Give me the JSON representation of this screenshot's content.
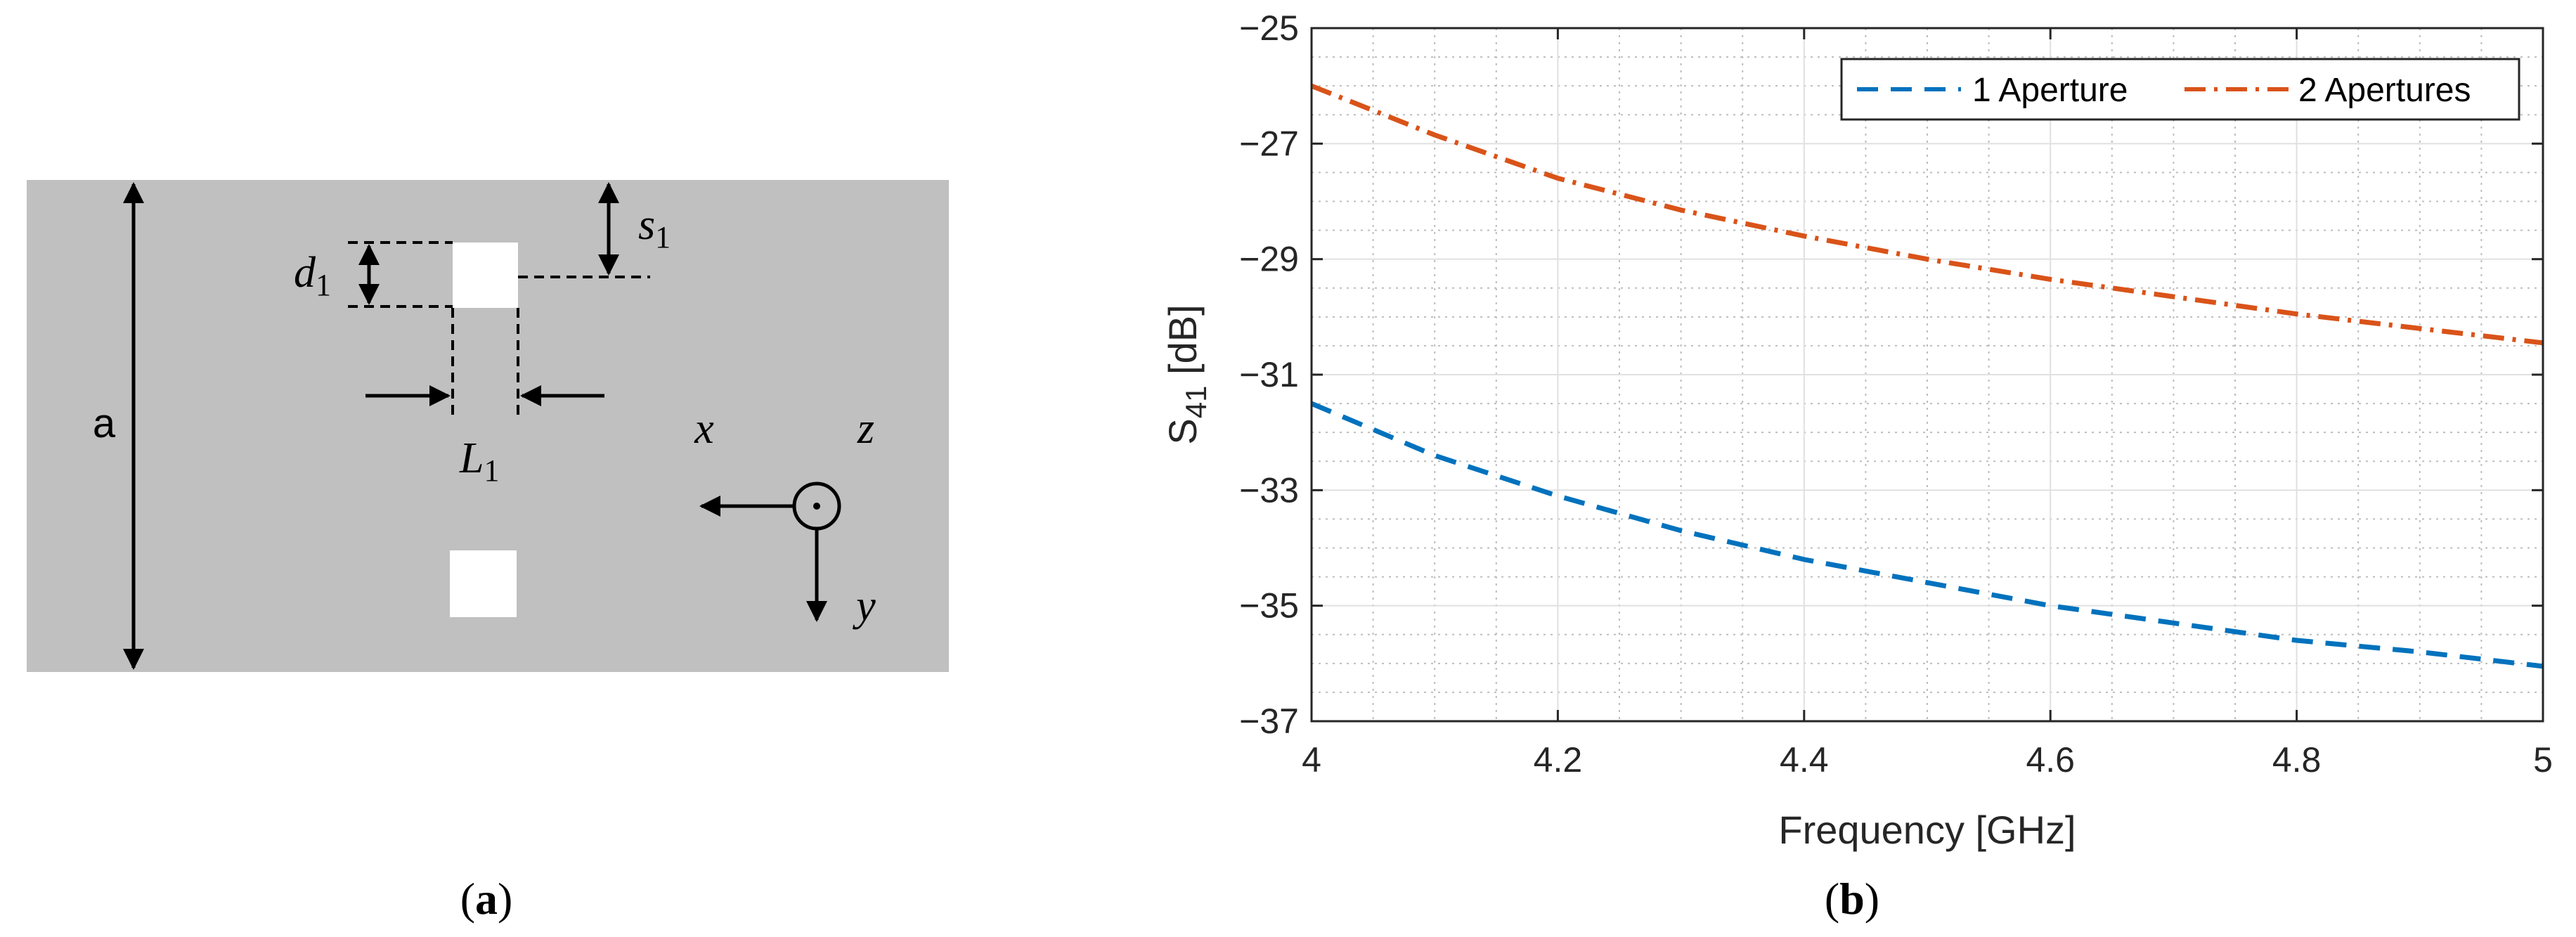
{
  "panel_a": {
    "label_open": "(",
    "label_letter": "a",
    "label_close": ")",
    "dim_a": "a",
    "dim_d": "d",
    "dim_d_sub": "1",
    "dim_s": "s",
    "dim_s_sub": "1",
    "dim_L": "L",
    "dim_L_sub": "1",
    "axis_x": "x",
    "axis_y": "y",
    "axis_z": "z",
    "colors": {
      "plate": "#c0c0c0",
      "aperture": "#ffffff",
      "lines": "#000000"
    }
  },
  "panel_b": {
    "label_open": "(",
    "label_letter": "b",
    "label_close": ")"
  },
  "chart_data": {
    "type": "line",
    "xlabel": "Frequency [GHz]",
    "ylabel": "S",
    "ylabel_sub": "41",
    "ylabel_unit": " [dB]",
    "xlim": [
      4,
      5
    ],
    "ylim": [
      -37,
      -25
    ],
    "xticks": [
      4,
      4.2,
      4.4,
      4.6,
      4.8,
      5
    ],
    "xtick_labels": [
      "4",
      "4.2",
      "4.4",
      "4.6",
      "4.8",
      "5"
    ],
    "yticks": [
      -25,
      -27,
      -29,
      -31,
      -33,
      -35,
      -37
    ],
    "ytick_labels": [
      "-25",
      "-27",
      "-29",
      "-31",
      "-33",
      "-35",
      "-37"
    ],
    "grid": "major and minor",
    "legend_position": "top-right",
    "x": [
      4.0,
      4.1,
      4.2,
      4.3,
      4.4,
      4.5,
      4.6,
      4.7,
      4.8,
      4.9,
      5.0
    ],
    "series": [
      {
        "name": "1 Aperture",
        "color": "#0072bd",
        "style": "dashed",
        "values": [
          -31.5,
          -32.4,
          -33.1,
          -33.7,
          -34.2,
          -34.6,
          -35.0,
          -35.3,
          -35.6,
          -35.8,
          -36.05
        ]
      },
      {
        "name": "2 Apertures",
        "color": "#d95319",
        "style": "dash-dot",
        "values": [
          -26.0,
          -26.85,
          -27.6,
          -28.15,
          -28.6,
          -29.0,
          -29.35,
          -29.65,
          -29.95,
          -30.2,
          -30.45
        ]
      }
    ]
  }
}
